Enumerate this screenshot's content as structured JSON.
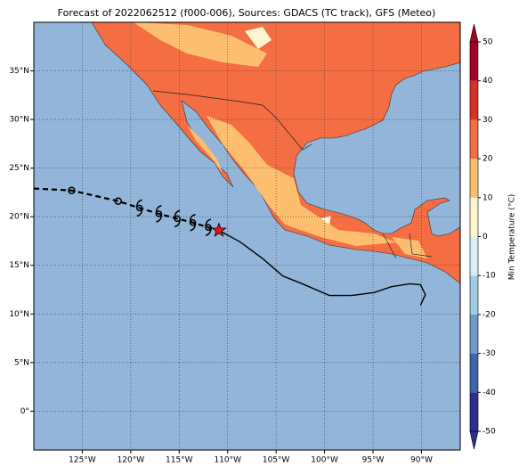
{
  "chart_data": {
    "type": "map",
    "title": "Forecast of 2022062512 (f000-006), Sources: GDACS (TC track), GFS (Meteo)",
    "xlim": [
      -130,
      -86
    ],
    "ylim": [
      -4,
      40
    ],
    "xticks": [
      {
        "value": -125,
        "label": "125°W"
      },
      {
        "value": -120,
        "label": "120°W"
      },
      {
        "value": -115,
        "label": "115°W"
      },
      {
        "value": -110,
        "label": "110°W"
      },
      {
        "value": -105,
        "label": "105°W"
      },
      {
        "value": -100,
        "label": "100°W"
      },
      {
        "value": -95,
        "label": "95°W"
      },
      {
        "value": -90,
        "label": "90°W"
      }
    ],
    "yticks": [
      {
        "value": 0,
        "label": "0°"
      },
      {
        "value": 5,
        "label": "5°N"
      },
      {
        "value": 10,
        "label": "10°N"
      },
      {
        "value": 15,
        "label": "15°N"
      },
      {
        "value": 20,
        "label": "20°N"
      },
      {
        "value": 25,
        "label": "25°N"
      },
      {
        "value": 30,
        "label": "30°N"
      },
      {
        "value": 35,
        "label": "35°N"
      }
    ],
    "grid": true,
    "forecast_track": {
      "x": [
        -130,
        -126.1,
        -121.3,
        -119.1,
        -117.1,
        -115.2,
        -113.6,
        -112.0,
        -110.9
      ],
      "y": [
        22.9,
        22.7,
        21.6,
        20.9,
        20.3,
        19.8,
        19.4,
        18.9,
        18.6
      ],
      "markers": [
        "none",
        "circle",
        "circle",
        "hurricane",
        "hurricane",
        "hurricane",
        "hurricane",
        "hurricane",
        "star"
      ],
      "color": "#000000",
      "star_color": "#e8161b"
    },
    "coast_track": {
      "x": [
        -110.9,
        -108.7,
        -106.4,
        -104.3,
        -102.3,
        -99.5,
        -97.2,
        -94.9,
        -93.1,
        -91.2,
        -90.1,
        -89.6,
        -90.1
      ],
      "y": [
        18.6,
        17.4,
        15.7,
        13.9,
        13.1,
        11.9,
        11.9,
        12.2,
        12.8,
        13.1,
        13.0,
        12.0,
        10.9
      ],
      "color": "#000000"
    },
    "colorbar": {
      "label": "Min Temperature (°C)",
      "lim": [
        -50,
        50
      ],
      "ticks": [
        -50,
        -40,
        -30,
        -20,
        -10,
        0,
        10,
        20,
        30,
        40,
        50
      ],
      "colors": [
        "#2d2f8f",
        "#3d66aa",
        "#6b9bc8",
        "#a1cbe2",
        "#d9eef5",
        "#fdf6cf",
        "#fdbe70",
        "#f46d43",
        "#d73027",
        "#a50026"
      ]
    }
  }
}
